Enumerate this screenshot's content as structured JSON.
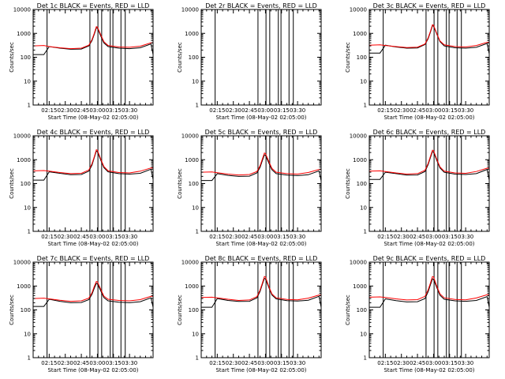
{
  "colors": {
    "events": "#000000",
    "lld": "#ff0000",
    "frame": "#000000",
    "background": "#ffffff"
  },
  "axes": {
    "xlabel": "Start Time (08-May-02 02:05:00)",
    "ylabel": "Counts/sec",
    "xtick_labels": [
      "02:15",
      "02:30",
      "02:45",
      "03:00",
      "03:15",
      "03:30"
    ],
    "xtick_minutes": [
      15,
      30,
      45,
      60,
      75,
      90
    ],
    "xlim_minutes": [
      0,
      112
    ],
    "ytick_labels": [
      "1",
      "10",
      "100",
      "1000",
      "10000"
    ],
    "ytick_values": [
      1,
      10,
      100,
      1000,
      10000
    ],
    "ylim": [
      1,
      10000
    ],
    "yscale": "log"
  },
  "chart_data": [
    {
      "type": "line",
      "title": "Det 1c BLACK = Events, RED = LLD",
      "x": [
        0,
        10,
        15,
        25,
        35,
        45,
        52,
        55,
        57,
        59,
        60,
        63,
        66,
        70,
        80,
        90,
        100,
        110,
        112
      ],
      "series": [
        {
          "name": "BLACK = Events",
          "y": [
            130,
            130,
            280,
            240,
            215,
            220,
            300,
            500,
            900,
            1700,
            1700,
            800,
            400,
            280,
            240,
            230,
            250,
            360,
            130
          ]
        },
        {
          "name": "RED = LLD",
          "y": [
            300,
            310,
            280,
            250,
            230,
            240,
            320,
            550,
            1000,
            1900,
            1850,
            900,
            450,
            310,
            270,
            260,
            290,
            400,
            400
          ]
        }
      ],
      "vlines_minutes": [
        13,
        53,
        60.5,
        64,
        72,
        74.5,
        82,
        86
      ]
    },
    {
      "type": "line",
      "title": "Det 2r BLACK = Events, RED = LLD",
      "x": [],
      "series": [],
      "vlines_minutes": [
        13,
        53,
        60.5,
        64,
        72,
        74.5,
        82,
        86
      ]
    },
    {
      "type": "line",
      "title": "Det 3c BLACK = Events, RED = LLD",
      "x": [
        0,
        10,
        15,
        25,
        35,
        45,
        52,
        55,
        57,
        59,
        60,
        63,
        66,
        70,
        80,
        90,
        100,
        110,
        112
      ],
      "series": [
        {
          "name": "BLACK = Events",
          "y": [
            150,
            150,
            320,
            270,
            240,
            245,
            340,
            600,
            1100,
            2100,
            2000,
            950,
            450,
            300,
            250,
            240,
            260,
            380,
            140
          ]
        },
        {
          "name": "RED = LLD",
          "y": [
            320,
            330,
            310,
            280,
            255,
            265,
            360,
            650,
            1200,
            2300,
            2200,
            1000,
            480,
            330,
            280,
            270,
            310,
            420,
            420
          ]
        }
      ],
      "vlines_minutes": [
        13,
        53,
        60.5,
        64,
        72,
        74.5,
        82,
        86
      ]
    },
    {
      "type": "line",
      "title": "Det 4c BLACK = Events, RED = LLD",
      "x": [
        0,
        10,
        15,
        25,
        35,
        45,
        52,
        55,
        57,
        59,
        60,
        63,
        66,
        70,
        80,
        90,
        100,
        110,
        112
      ],
      "series": [
        {
          "name": "BLACK = Events",
          "y": [
            140,
            140,
            310,
            270,
            235,
            240,
            330,
            600,
            1200,
            2300,
            2200,
            1000,
            470,
            310,
            260,
            250,
            270,
            400,
            150
          ]
        },
        {
          "name": "RED = LLD",
          "y": [
            340,
            350,
            330,
            290,
            260,
            270,
            370,
            680,
            1300,
            2600,
            2500,
            1100,
            520,
            340,
            290,
            280,
            330,
            450,
            450
          ]
        }
      ],
      "vlines_minutes": [
        13,
        53,
        60.5,
        64,
        72,
        74.5,
        82,
        86
      ]
    },
    {
      "type": "line",
      "title": "Det 5c BLACK = Events, RED = LLD",
      "x": [
        0,
        10,
        15,
        25,
        35,
        45,
        52,
        55,
        57,
        59,
        60,
        63,
        66,
        70,
        80,
        90,
        100,
        110,
        112
      ],
      "series": [
        {
          "name": "BLACK = Events",
          "y": [
            135,
            135,
            260,
            220,
            200,
            205,
            280,
            480,
            900,
            1600,
            1550,
            760,
            380,
            260,
            225,
            215,
            235,
            340,
            130
          ]
        },
        {
          "name": "RED = LLD",
          "y": [
            300,
            305,
            285,
            250,
            230,
            240,
            320,
            560,
            1050,
            1900,
            1800,
            880,
            430,
            300,
            260,
            250,
            290,
            390,
            390
          ]
        }
      ],
      "vlines_minutes": [
        13,
        53,
        60.5,
        64,
        72,
        74.5,
        82,
        86
      ]
    },
    {
      "type": "line",
      "title": "Det 6c BLACK = Events, RED = LLD",
      "x": [
        0,
        10,
        15,
        25,
        35,
        45,
        52,
        55,
        57,
        59,
        60,
        63,
        66,
        70,
        80,
        90,
        100,
        110,
        112
      ],
      "series": [
        {
          "name": "BLACK = Events",
          "y": [
            150,
            150,
            300,
            260,
            225,
            230,
            320,
            620,
            1200,
            2200,
            2100,
            950,
            450,
            300,
            250,
            240,
            260,
            390,
            140
          ]
        },
        {
          "name": "RED = LLD",
          "y": [
            330,
            340,
            320,
            280,
            250,
            260,
            360,
            700,
            1350,
            2500,
            2400,
            1050,
            500,
            330,
            280,
            270,
            320,
            440,
            440
          ]
        }
      ],
      "vlines_minutes": [
        13,
        53,
        60.5,
        64,
        72,
        74.5,
        82,
        86
      ]
    },
    {
      "type": "line",
      "title": "Det 7c BLACK = Events, RED = LLD",
      "x": [
        0,
        10,
        15,
        25,
        35,
        45,
        52,
        55,
        57,
        59,
        60,
        63,
        66,
        70,
        80,
        90,
        100,
        110,
        112
      ],
      "series": [
        {
          "name": "BLACK = Events",
          "y": [
            140,
            140,
            280,
            230,
            200,
            205,
            270,
            450,
            800,
            1300,
            1250,
            650,
            330,
            240,
            210,
            200,
            220,
            320,
            130
          ]
        },
        {
          "name": "RED = LLD",
          "y": [
            300,
            310,
            290,
            255,
            230,
            240,
            310,
            520,
            950,
            1550,
            1500,
            760,
            380,
            280,
            250,
            240,
            270,
            370,
            370
          ]
        }
      ],
      "vlines_minutes": [
        13,
        53,
        60.5,
        64,
        72,
        74.5,
        82,
        86
      ]
    },
    {
      "type": "line",
      "title": "Det 8c BLACK = Events, RED = LLD",
      "x": [
        0,
        10,
        15,
        25,
        35,
        45,
        52,
        55,
        57,
        59,
        60,
        63,
        66,
        70,
        80,
        90,
        100,
        110,
        112
      ],
      "series": [
        {
          "name": "BLACK = Events",
          "y": [
            130,
            130,
            300,
            250,
            225,
            230,
            320,
            600,
            1150,
            2100,
            2000,
            900,
            420,
            290,
            245,
            235,
            255,
            370,
            130
          ]
        },
        {
          "name": "RED = LLD",
          "y": [
            330,
            340,
            320,
            280,
            250,
            260,
            360,
            680,
            1300,
            2500,
            2400,
            1000,
            470,
            320,
            275,
            265,
            310,
            420,
            420
          ]
        }
      ],
      "vlines_minutes": [
        13,
        53,
        60.5,
        64,
        72,
        74.5,
        82,
        86
      ]
    },
    {
      "type": "line",
      "title": "Det 9c BLACK = Events, RED = LLD",
      "x": [
        0,
        10,
        15,
        25,
        35,
        45,
        52,
        55,
        57,
        59,
        60,
        63,
        66,
        70,
        80,
        90,
        100,
        110,
        112
      ],
      "series": [
        {
          "name": "BLACK = Events",
          "y": [
            130,
            130,
            290,
            245,
            215,
            220,
            300,
            580,
            1100,
            2000,
            1900,
            880,
            410,
            280,
            240,
            230,
            250,
            360,
            130
          ]
        },
        {
          "name": "RED = LLD",
          "y": [
            340,
            350,
            330,
            290,
            260,
            270,
            370,
            690,
            1300,
            2500,
            2400,
            1000,
            470,
            320,
            275,
            265,
            315,
            430,
            430
          ]
        }
      ],
      "vlines_minutes": [
        13,
        53,
        60.5,
        64,
        72,
        74.5,
        82,
        86
      ]
    }
  ]
}
